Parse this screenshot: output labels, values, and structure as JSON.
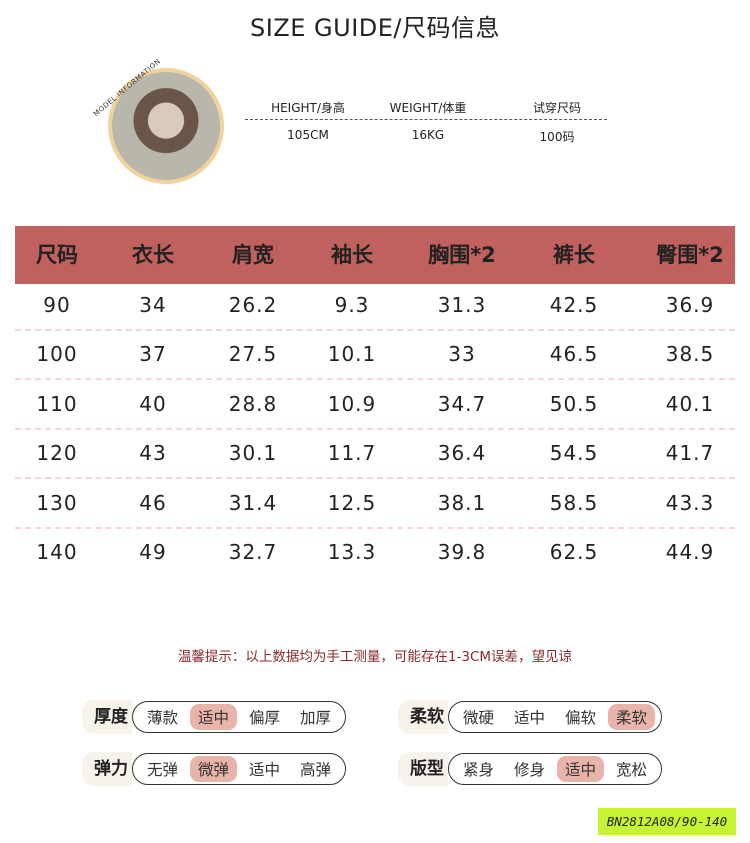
{
  "title": "SIZE GUIDE/尺码信息",
  "model": {
    "label": "MODEL INFORMATION",
    "headers": [
      "HEIGHT/身高",
      "WEIGHT/体重",
      "试穿尺码"
    ],
    "values": [
      "105CM",
      "16KG",
      "100码"
    ]
  },
  "table": {
    "header_color": "#c0605f",
    "headers": [
      "尺码",
      "衣长",
      "肩宽",
      "袖长",
      "胸围*2",
      "裤长",
      "臀围*2"
    ],
    "rows": [
      [
        "90",
        "34",
        "26.2",
        "9.3",
        "31.3",
        "42.5",
        "36.9"
      ],
      [
        "100",
        "37",
        "27.5",
        "10.1",
        "33",
        "46.5",
        "38.5"
      ],
      [
        "110",
        "40",
        "28.8",
        "10.9",
        "34.7",
        "50.5",
        "40.1"
      ],
      [
        "120",
        "43",
        "30.1",
        "11.7",
        "36.4",
        "54.5",
        "41.7"
      ],
      [
        "130",
        "46",
        "31.4",
        "12.5",
        "38.1",
        "58.5",
        "43.3"
      ],
      [
        "140",
        "49",
        "32.7",
        "13.3",
        "39.8",
        "62.5",
        "44.9"
      ]
    ]
  },
  "note": "温馨提示：以上数据均为手工测量，可能存在1-3CM误差，望见谅",
  "attributes": [
    {
      "label": "厚度",
      "options": [
        "薄款",
        "适中",
        "偏厚",
        "加厚"
      ],
      "selected": 1
    },
    {
      "label": "柔软",
      "options": [
        "微硬",
        "适中",
        "偏软",
        "柔软"
      ],
      "selected": 3
    },
    {
      "label": "弹力",
      "options": [
        "无弹",
        "微弹",
        "适中",
        "高弹"
      ],
      "selected": 1
    },
    {
      "label": "版型",
      "options": [
        "紧身",
        "修身",
        "适中",
        "宽松"
      ],
      "selected": 2
    }
  ],
  "sticker": "BN2812A08/90-140"
}
